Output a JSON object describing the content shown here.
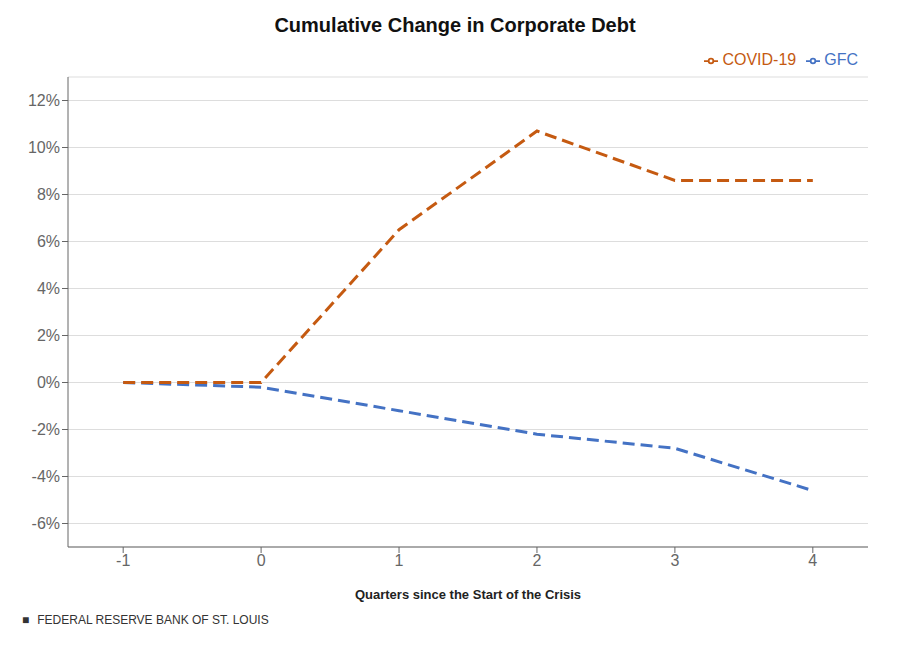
{
  "chart_data": {
    "type": "line",
    "title": "Cumulative Change in Corporate Debt",
    "x_label": "Quarters since the Start of the Crisis",
    "x": [
      -1,
      0,
      1,
      2,
      3,
      4
    ],
    "series": [
      {
        "name": "GFC",
        "color": "#4472C4",
        "line_style": "dashed",
        "values": [
          0.0,
          -0.002,
          -0.012,
          -0.022,
          -0.028,
          -0.046
        ]
      },
      {
        "name": "COVID-19",
        "color": "#C55A11",
        "line_style": "dashed",
        "values": [
          0.0,
          0.0,
          0.065,
          0.107,
          0.086,
          0.086
        ]
      }
    ],
    "xlim": [
      -1.4,
      4.4
    ],
    "xticks": [
      -1,
      0,
      1,
      2,
      3,
      4
    ],
    "ylim": [
      -0.07,
      0.13
    ],
    "yticks": [
      {
        "value": -0.06,
        "label": "-6%"
      },
      {
        "value": -0.04,
        "label": "-4%"
      },
      {
        "value": -0.02,
        "label": "-2%"
      },
      {
        "value": 0.0,
        "label": "0%"
      },
      {
        "value": 0.02,
        "label": "2%"
      },
      {
        "value": 0.04,
        "label": "4%"
      },
      {
        "value": 0.06,
        "label": "6%"
      },
      {
        "value": 0.08,
        "label": "8%"
      },
      {
        "value": 0.1,
        "label": "10%"
      },
      {
        "value": 0.12,
        "label": "12%"
      }
    ],
    "grid": "y",
    "legend": "upper right",
    "annotations": [
      "■",
      "FEDERAL RESERVE BANK OF ST. LOUIS"
    ]
  }
}
